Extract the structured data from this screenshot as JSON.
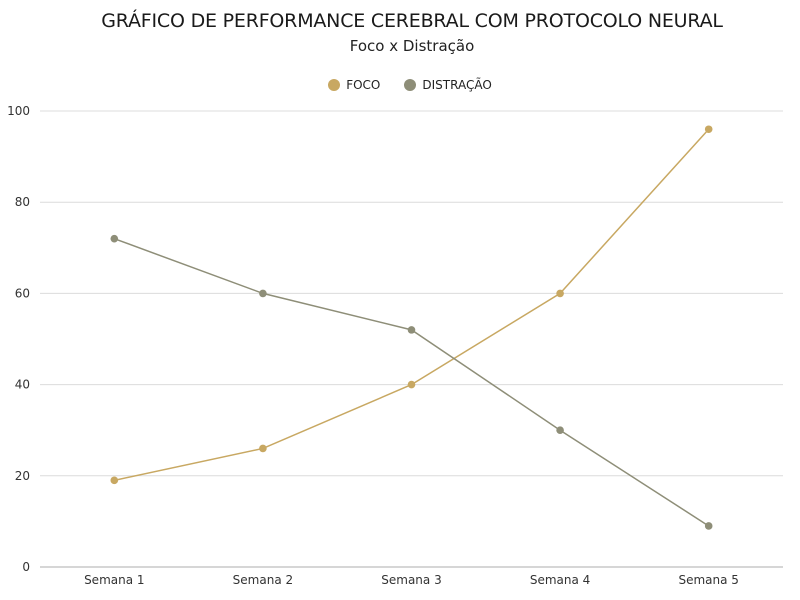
{
  "title": "GRÁFICO DE PERFORMANCE CEREBRAL COM PROTOCOLO NEURAL",
  "subtitle": "Foco x Distração",
  "legend": [
    {
      "label": "FOCO",
      "color": "#C8A862"
    },
    {
      "label": "DISTRAÇÃO",
      "color": "#8E8E78"
    }
  ],
  "chart_data": {
    "type": "line",
    "title": "GRÁFICO DE PERFORMANCE CEREBRAL COM PROTOCOLO NEURAL",
    "subtitle": "Foco x Distração",
    "categories": [
      "Semana 1",
      "Semana 2",
      "Semana 3",
      "Semana 4",
      "Semana 5"
    ],
    "series": [
      {
        "name": "FOCO",
        "color": "#C8A862",
        "values": [
          19,
          26,
          40,
          60,
          96
        ]
      },
      {
        "name": "DISTRAÇÃO",
        "color": "#8E8E78",
        "values": [
          72,
          60,
          52,
          30,
          9
        ]
      }
    ],
    "xlabel": "",
    "ylabel": "",
    "ylim": [
      0,
      100
    ],
    "yticks": [
      0,
      20,
      40,
      60,
      80,
      100
    ],
    "grid": true,
    "legend_position": "top"
  }
}
